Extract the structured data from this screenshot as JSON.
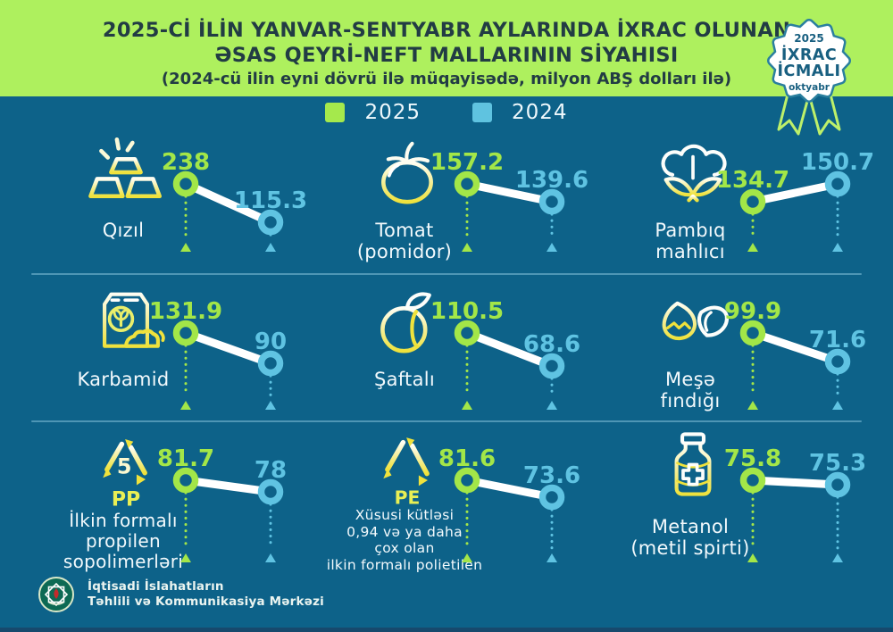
{
  "header": {
    "title_line1": "2025-Cİ İLİN YANVAR-SENTYABR AYLARINDA İXRAC OLUNAN",
    "title_line2": "ƏSAS QEYRİ-NEFT MALLARININ SİYAHISI",
    "subtitle": "(2024-cü ilin eyni dövrü ilə müqayisədə, milyon ABŞ dolları ilə)"
  },
  "badge": {
    "year": "2025",
    "line1": "İXRAC",
    "line2": "İCMALI",
    "month": "oktyabr"
  },
  "legend": [
    {
      "label": "2025",
      "color": "#a5e94c"
    },
    {
      "label": "2024",
      "color": "#5fc3e0"
    }
  ],
  "footer": {
    "org_line1": "İqtisadi İslahatların",
    "org_line2": "Təhlili və Kommunikasiya Mərkəzi"
  },
  "colors": {
    "background": "#0d6289",
    "band_green": "#aef05e",
    "accent_2025": "#a3e648",
    "accent_2024": "#5fc3e2",
    "line_white": "#ffffff",
    "separator": "#4e96b5",
    "title_text": "#223c44",
    "badge_text": "#185f80",
    "bottom_strip": "#17496d"
  },
  "chart_data": {
    "type": "slope",
    "title": "2025-ci ilin yanvar-sentyabr aylarında ixrac olunan əsas qeyri-neft mallarının siyahısı",
    "subtitle": "2024-cü ilin eyni dövrü ilə müqayisədə",
    "unit": "milyon ABŞ dolları",
    "series_years": [
      "2025",
      "2024"
    ],
    "legend_position": "top-center",
    "items": [
      {
        "icon": "gold-bars",
        "name_lines": [
          "Qızıl"
        ],
        "v2025": 238,
        "v2024": 115.3
      },
      {
        "icon": "tomato",
        "name_lines": [
          "Tomat",
          "(pomidor)"
        ],
        "v2025": 157.2,
        "v2024": 139.6
      },
      {
        "icon": "cotton",
        "name_lines": [
          "Pambıq",
          "mahlıcı"
        ],
        "v2025": 134.7,
        "v2024": 150.7
      },
      {
        "icon": "fertilizer-bag",
        "name_lines": [
          "Karbamid"
        ],
        "v2025": 131.9,
        "v2024": 90
      },
      {
        "icon": "peach",
        "name_lines": [
          "Şaftalı"
        ],
        "v2025": 110.5,
        "v2024": 68.6
      },
      {
        "icon": "hazelnut",
        "name_lines": [
          "Meşə",
          "fındığı"
        ],
        "v2025": 99.9,
        "v2024": 71.6
      },
      {
        "icon": "recycle-pp",
        "name_lines": [
          "İlkin formalı",
          "propilen",
          "sopolimerləri"
        ],
        "v2025": 81.7,
        "v2024": 78
      },
      {
        "icon": "recycle-pe",
        "name_lines": [
          "Xüsusi kütləsi",
          "0,94 və ya daha",
          "çox olan",
          "ilkin formalı polietilen"
        ],
        "v2025": 81.6,
        "v2024": 73.6
      },
      {
        "icon": "methanol-bottle",
        "name_lines": [
          "Metanol",
          "(metil spirti)"
        ],
        "v2025": 75.8,
        "v2024": 75.3
      }
    ]
  }
}
